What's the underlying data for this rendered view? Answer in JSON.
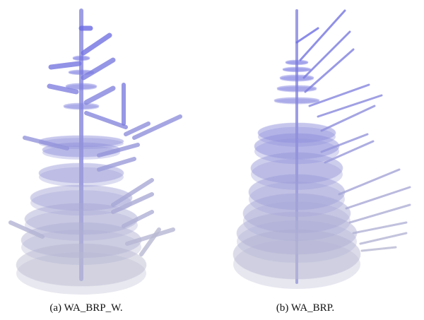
{
  "figure": {
    "panels": [
      {
        "caption": "(a) WA_BRP_W."
      },
      {
        "caption": "(b) WA_BRP."
      }
    ]
  }
}
